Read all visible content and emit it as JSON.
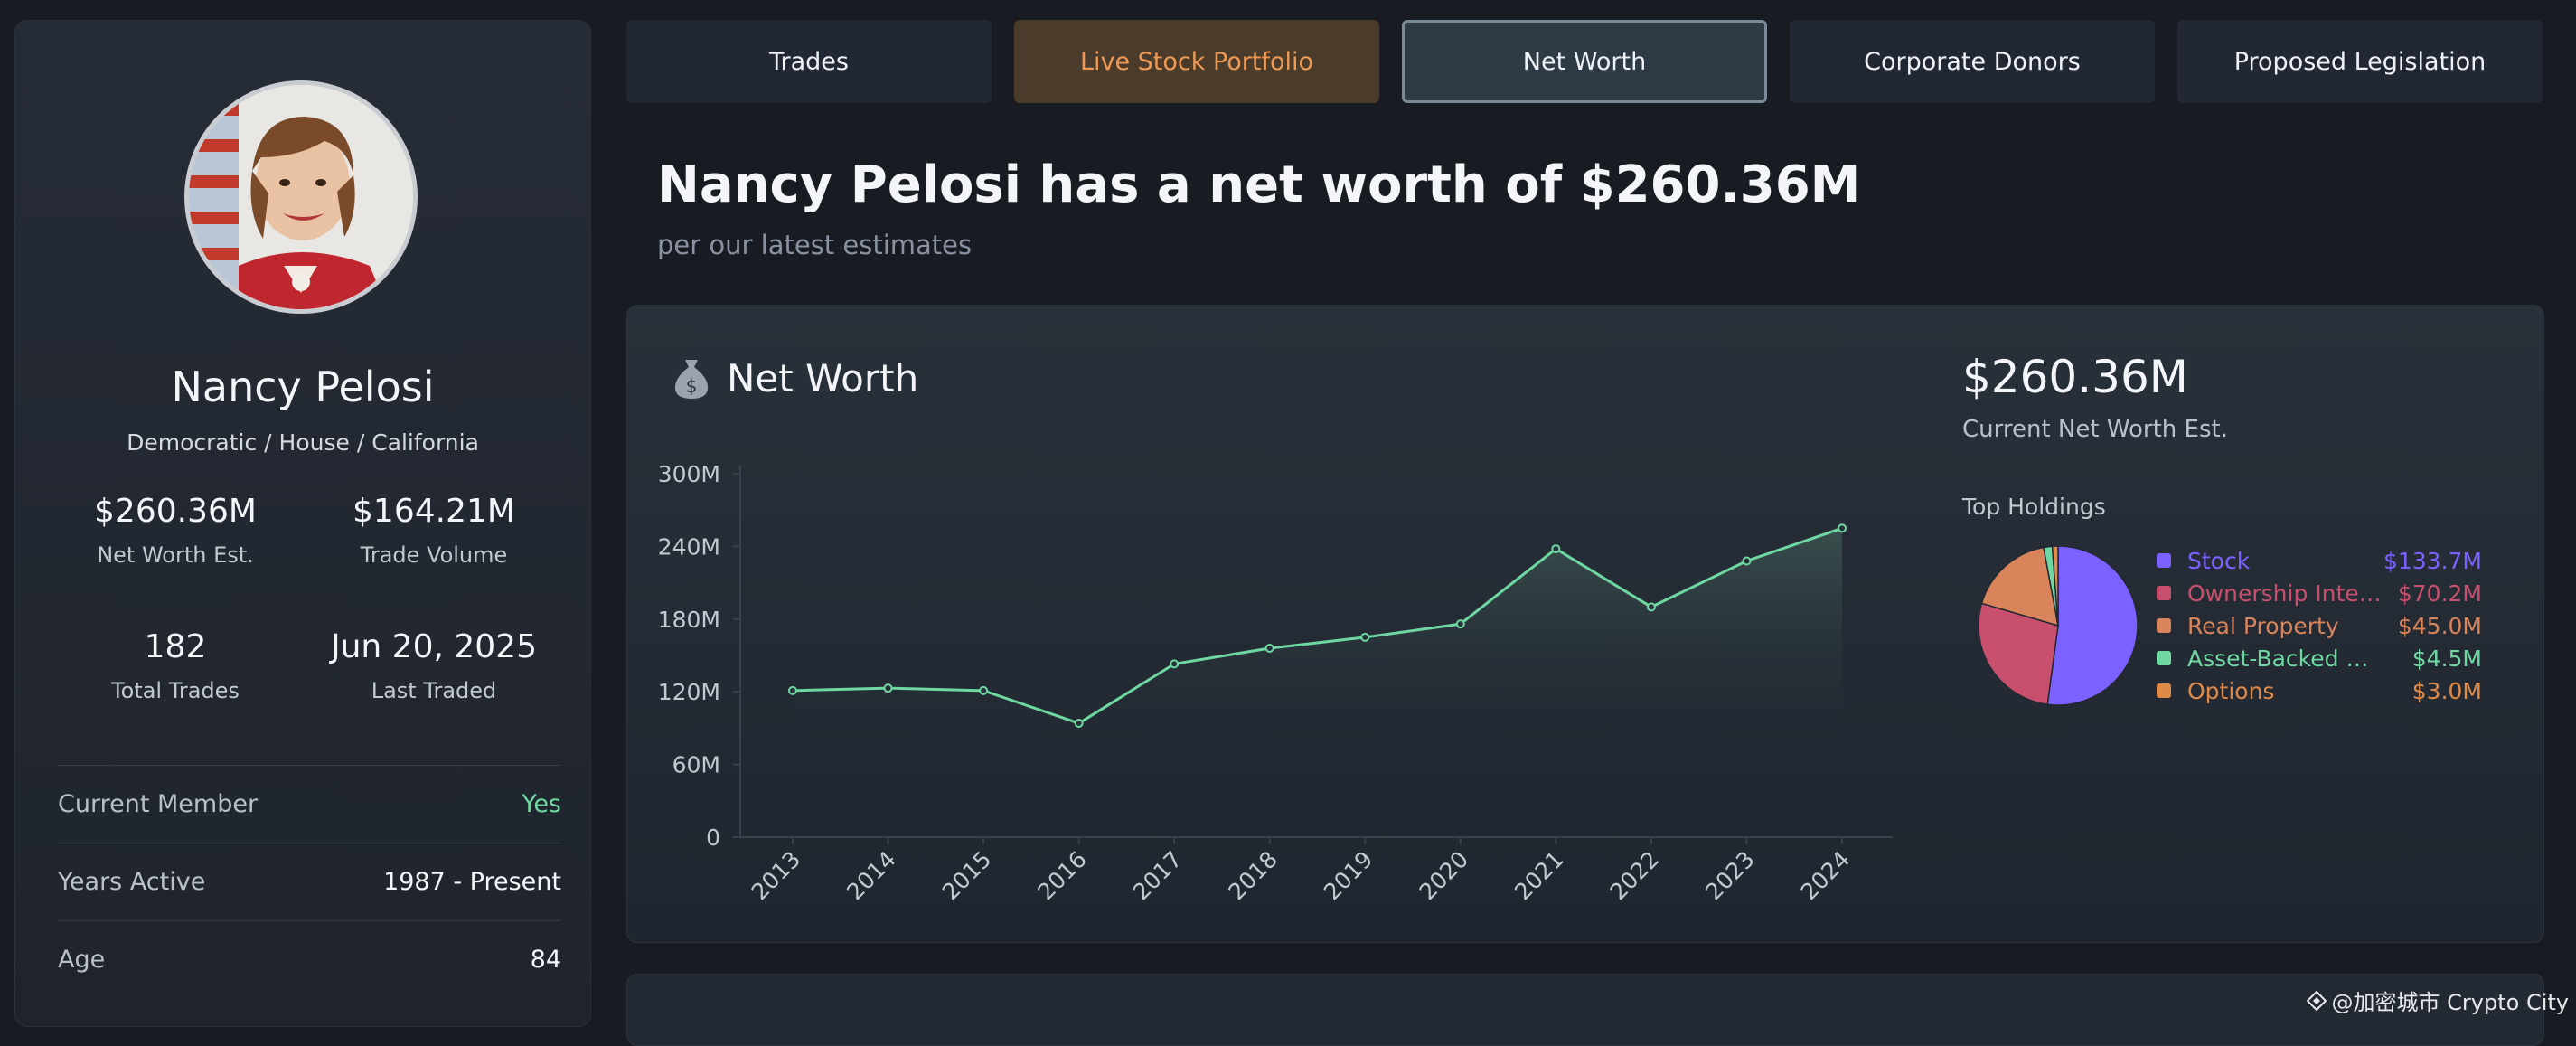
{
  "sidebar": {
    "name": "Nancy Pelosi",
    "subtitle": "Democratic / House / California",
    "stats": [
      {
        "value": "$260.36M",
        "label": "Net Worth Est."
      },
      {
        "value": "$164.21M",
        "label": "Trade Volume"
      },
      {
        "value": "182",
        "label": "Total Trades"
      },
      {
        "value": "Jun 20, 2025",
        "label": "Last Traded"
      }
    ],
    "rows": [
      {
        "key": "Current Member",
        "value": "Yes"
      },
      {
        "key": "Years Active",
        "value": "1987 - Present"
      },
      {
        "key": "Age",
        "value": "84"
      }
    ]
  },
  "tabs": [
    "Trades",
    "Live Stock Portfolio",
    "Net Worth",
    "Corporate Donors",
    "Proposed Legislation"
  ],
  "headline": "Nancy Pelosi has a net worth of $260.36M",
  "subline": "per our latest estimates",
  "card": {
    "title": "Net Worth",
    "current_value": "$260.36M",
    "current_label": "Current Net Worth Est.",
    "holdings_label": "Top Holdings"
  },
  "chart_data": [
    {
      "type": "area",
      "title": "Net Worth",
      "x": [
        "2013",
        "2014",
        "2015",
        "2016",
        "2017",
        "2018",
        "2019",
        "2020",
        "2021",
        "2022",
        "2023",
        "2024"
      ],
      "values": [
        121,
        123,
        121,
        94,
        143,
        156,
        165,
        176,
        238,
        190,
        228,
        255
      ],
      "y_ticks": [
        "0",
        "60M",
        "120M",
        "180M",
        "240M",
        "300M"
      ],
      "ylim": [
        0,
        300
      ],
      "unit": "M",
      "color": "#6fd7a1"
    },
    {
      "type": "pie",
      "title": "Top Holdings",
      "slices": [
        {
          "name": "Stock",
          "display": "Stock",
          "value": 133.7,
          "label": "$133.7M",
          "color": "#7b61ff"
        },
        {
          "name": "Ownership Interest",
          "display": "Ownership Inte…",
          "value": 70.2,
          "label": "$70.2M",
          "color": "#c94f6e"
        },
        {
          "name": "Real Property",
          "display": "Real Property",
          "value": 45.0,
          "label": "$45.0M",
          "color": "#d9845a"
        },
        {
          "name": "Asset-Backed",
          "display": "Asset-Backed …",
          "value": 4.5,
          "label": "$4.5M",
          "color": "#6fd7a1"
        },
        {
          "name": "Options",
          "display": "Options",
          "value": 3.0,
          "label": "$3.0M",
          "color": "#e08a48"
        }
      ]
    }
  ],
  "watermark": "@加密城市 Crypto City"
}
